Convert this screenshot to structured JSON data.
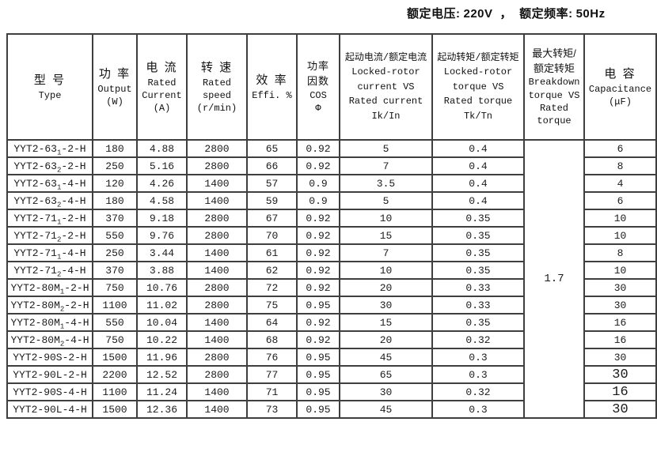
{
  "title_bar": {
    "voltage_label": "额定电压:",
    "voltage_value": "220V",
    "comma": "，",
    "frequency_label": "额定频率:",
    "frequency_value": "50Hz"
  },
  "table": {
    "columns": [
      {
        "id": "model",
        "lines": [
          "型 号",
          "Type"
        ]
      },
      {
        "id": "output",
        "lines": [
          "功 率",
          "Output",
          "(W)"
        ]
      },
      {
        "id": "current",
        "lines": [
          "电 流",
          "Rated",
          "Current",
          "(A)"
        ]
      },
      {
        "id": "speed",
        "lines": [
          "转 速",
          "Rated",
          "speed",
          "(r/min)"
        ]
      },
      {
        "id": "efficiency",
        "lines": [
          "效 率",
          "Effi. %"
        ]
      },
      {
        "id": "power_factor",
        "lines": [
          "功率",
          "因数",
          "COS",
          "Φ"
        ]
      },
      {
        "id": "locked_rotor_current",
        "lines": [
          "起动电流/额定电流 Locked-rotor current VS Rated current Ik/In"
        ]
      },
      {
        "id": "locked_rotor_torque",
        "lines": [
          "起动转矩/额定转矩 Locked-rotor torque VS Rated torque Tk/Tn"
        ]
      },
      {
        "id": "breakdown_torque",
        "lines": [
          "最大转矩/",
          "额定转矩",
          "Breakdown",
          "torque VS",
          "Rated",
          "torque"
        ]
      },
      {
        "id": "capacitance",
        "lines": [
          "电 容",
          "Capacitance",
          "(μF)"
        ]
      }
    ],
    "breakdown_torque_value": "1.7",
    "rows": [
      {
        "model": "YYT2-631-2-H",
        "output": "180",
        "current": "4.88",
        "speed": "2800",
        "efficiency": "65",
        "cos": "0.92",
        "ik_in": "5",
        "tk_tn": "0.4",
        "capacitance": "6",
        "cap_large": false
      },
      {
        "model": "YYT2-632-2-H",
        "output": "250",
        "current": "5.16",
        "speed": "2800",
        "efficiency": "66",
        "cos": "0.92",
        "ik_in": "7",
        "tk_tn": "0.4",
        "capacitance": "8",
        "cap_large": false
      },
      {
        "model": "YYT2-631-4-H",
        "output": "120",
        "current": "4.26",
        "speed": "1400",
        "efficiency": "57",
        "cos": "0.9",
        "ik_in": "3.5",
        "tk_tn": "0.4",
        "capacitance": "4",
        "cap_large": false
      },
      {
        "model": "YYT2-632-4-H",
        "output": "180",
        "current": "4.58",
        "speed": "1400",
        "efficiency": "59",
        "cos": "0.9",
        "ik_in": "5",
        "tk_tn": "0.4",
        "capacitance": "6",
        "cap_large": false
      },
      {
        "model": "YYT2-711-2-H",
        "output": "370",
        "current": "9.18",
        "speed": "2800",
        "efficiency": "67",
        "cos": "0.92",
        "ik_in": "10",
        "tk_tn": "0.35",
        "capacitance": "10",
        "cap_large": false
      },
      {
        "model": "YYT2-712-2-H",
        "output": "550",
        "current": "9.76",
        "speed": "2800",
        "efficiency": "70",
        "cos": "0.92",
        "ik_in": "15",
        "tk_tn": "0.35",
        "capacitance": "10",
        "cap_large": false
      },
      {
        "model": "YYT2-711-4-H",
        "output": "250",
        "current": "3.44",
        "speed": "1400",
        "efficiency": "61",
        "cos": "0.92",
        "ik_in": "7",
        "tk_tn": "0.35",
        "capacitance": "8",
        "cap_large": false
      },
      {
        "model": "YYT2-712-4-H",
        "output": "370",
        "current": "3.88",
        "speed": "1400",
        "efficiency": "62",
        "cos": "0.92",
        "ik_in": "10",
        "tk_tn": "0.35",
        "capacitance": "10",
        "cap_large": false
      },
      {
        "model": "YYT2-80M1-2-H",
        "output": "750",
        "current": "10.76",
        "speed": "2800",
        "efficiency": "72",
        "cos": "0.92",
        "ik_in": "20",
        "tk_tn": "0.33",
        "capacitance": "30",
        "cap_large": false
      },
      {
        "model": "YYT2-80M2-2-H",
        "output": "1100",
        "current": "11.02",
        "speed": "2800",
        "efficiency": "75",
        "cos": "0.95",
        "ik_in": "30",
        "tk_tn": "0.33",
        "capacitance": "30",
        "cap_large": false
      },
      {
        "model": "YYT2-80M1-4-H",
        "output": "550",
        "current": "10.04",
        "speed": "1400",
        "efficiency": "64",
        "cos": "0.92",
        "ik_in": "15",
        "tk_tn": "0.35",
        "capacitance": "16",
        "cap_large": false
      },
      {
        "model": "YYT2-80M2-4-H",
        "output": "750",
        "current": "10.22",
        "speed": "1400",
        "efficiency": "68",
        "cos": "0.92",
        "ik_in": "20",
        "tk_tn": "0.32",
        "capacitance": "16",
        "cap_large": false
      },
      {
        "model": "YYT2-90S-2-H",
        "output": "1500",
        "current": "11.96",
        "speed": "2800",
        "efficiency": "76",
        "cos": "0.95",
        "ik_in": "45",
        "tk_tn": "0.3",
        "capacitance": "30",
        "cap_large": false
      },
      {
        "model": "YYT2-90L-2-H",
        "output": "2200",
        "current": "12.52",
        "speed": "2800",
        "efficiency": "77",
        "cos": "0.95",
        "ik_in": "65",
        "tk_tn": "0.3",
        "capacitance": "30",
        "cap_large": true
      },
      {
        "model": "YYT2-90S-4-H",
        "output": "1100",
        "current": "11.24",
        "speed": "1400",
        "efficiency": "71",
        "cos": "0.95",
        "ik_in": "30",
        "tk_tn": "0.32",
        "capacitance": "16",
        "cap_large": true
      },
      {
        "model": "YYT2-90L-4-H",
        "output": "1500",
        "current": "12.36",
        "speed": "1400",
        "efficiency": "73",
        "cos": "0.95",
        "ik_in": "45",
        "tk_tn": "0.3",
        "capacitance": "30",
        "cap_large": true
      }
    ]
  },
  "colors": {
    "grid_border": "#3f3f3f",
    "text": "#1c1c1c",
    "background": "#ffffff"
  }
}
